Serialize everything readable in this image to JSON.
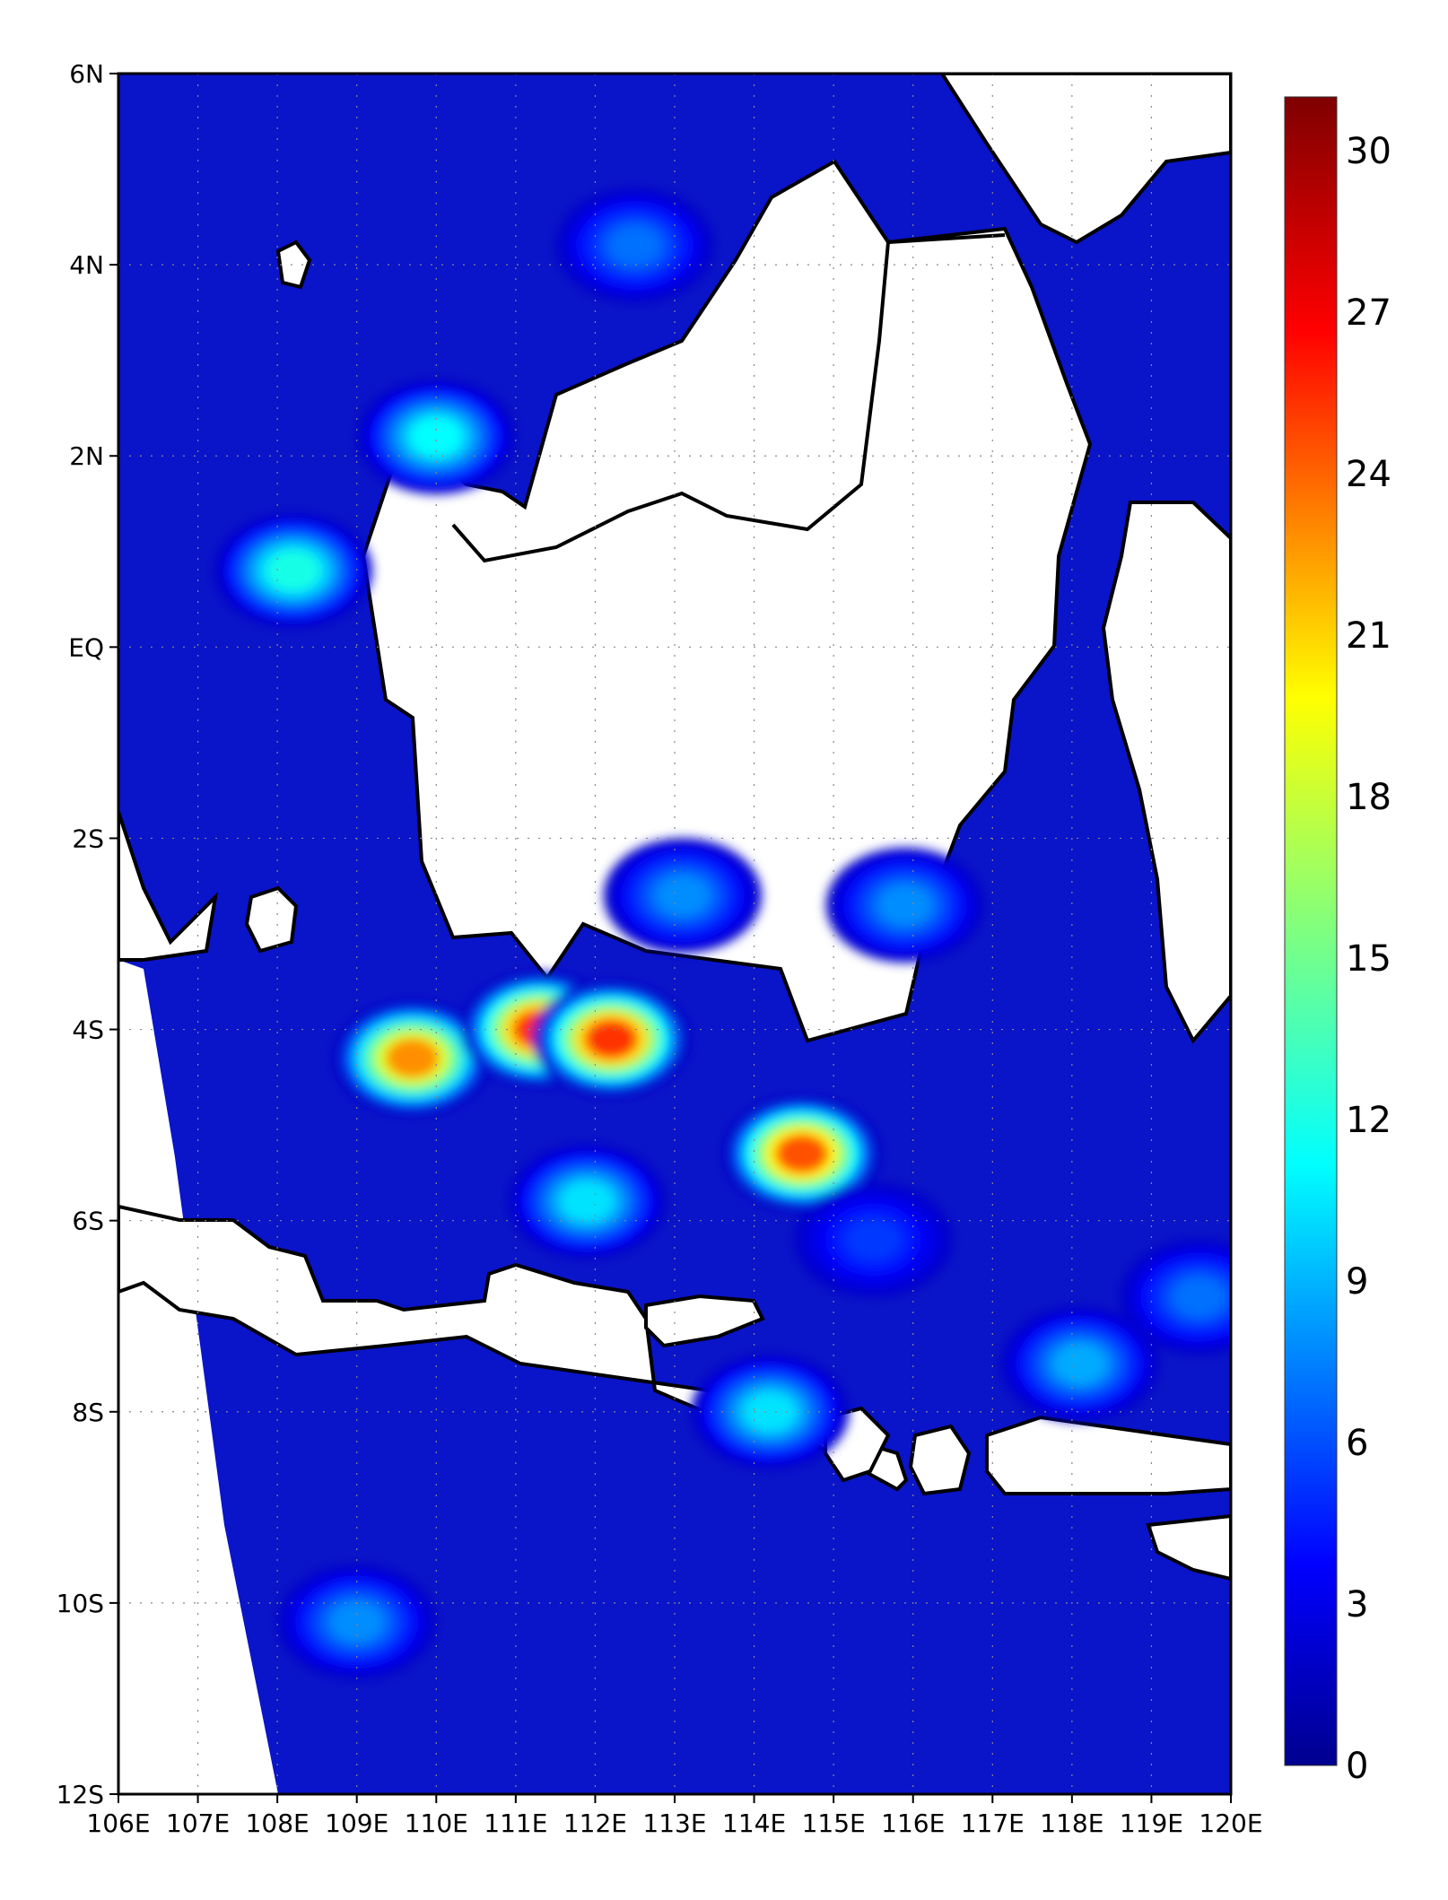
{
  "map": {
    "lon_range": [
      106,
      120
    ],
    "lat_range": [
      -12,
      6
    ],
    "x_ticks": [
      "106E",
      "107E",
      "108E",
      "109E",
      "110E",
      "111E",
      "112E",
      "113E",
      "114E",
      "115E",
      "116E",
      "117E",
      "118E",
      "119E",
      "120E"
    ],
    "y_ticks": [
      "6N",
      "4N",
      "2N",
      "EQ",
      "2S",
      "4S",
      "6S",
      "8S",
      "10S",
      "12S"
    ],
    "colorbar_labels": [
      "30",
      "27",
      "24",
      "21",
      "18",
      "15",
      "12",
      "9",
      "6",
      "3",
      "0"
    ],
    "colorbar_range": [
      0,
      31
    ],
    "field_background_color": "#0a14c8",
    "land_color": "#ffffff",
    "coastline_color": "#000000",
    "grid": "dotted",
    "hotspots": [
      {
        "lon": 109.7,
        "lat": -4.3,
        "value": 27
      },
      {
        "lon": 111.3,
        "lat": -4.0,
        "value": 30
      },
      {
        "lon": 112.2,
        "lat": -4.1,
        "value": 30
      },
      {
        "lon": 114.6,
        "lat": -5.3,
        "value": 29
      },
      {
        "lon": 108.2,
        "lat": 0.8,
        "value": 14
      },
      {
        "lon": 110.0,
        "lat": 2.2,
        "value": 13
      },
      {
        "lon": 111.9,
        "lat": -5.8,
        "value": 12
      },
      {
        "lon": 113.1,
        "lat": -2.6,
        "value": 9
      },
      {
        "lon": 115.9,
        "lat": -2.7,
        "value": 9
      },
      {
        "lon": 118.1,
        "lat": -7.5,
        "value": 10
      },
      {
        "lon": 112.5,
        "lat": 4.2,
        "value": 8
      },
      {
        "lon": 109.0,
        "lat": -10.2,
        "value": 9
      },
      {
        "lon": 114.2,
        "lat": -8.0,
        "value": 12
      },
      {
        "lon": 119.6,
        "lat": -6.8,
        "value": 8
      },
      {
        "lon": 115.5,
        "lat": -6.2,
        "value": 6
      }
    ]
  }
}
